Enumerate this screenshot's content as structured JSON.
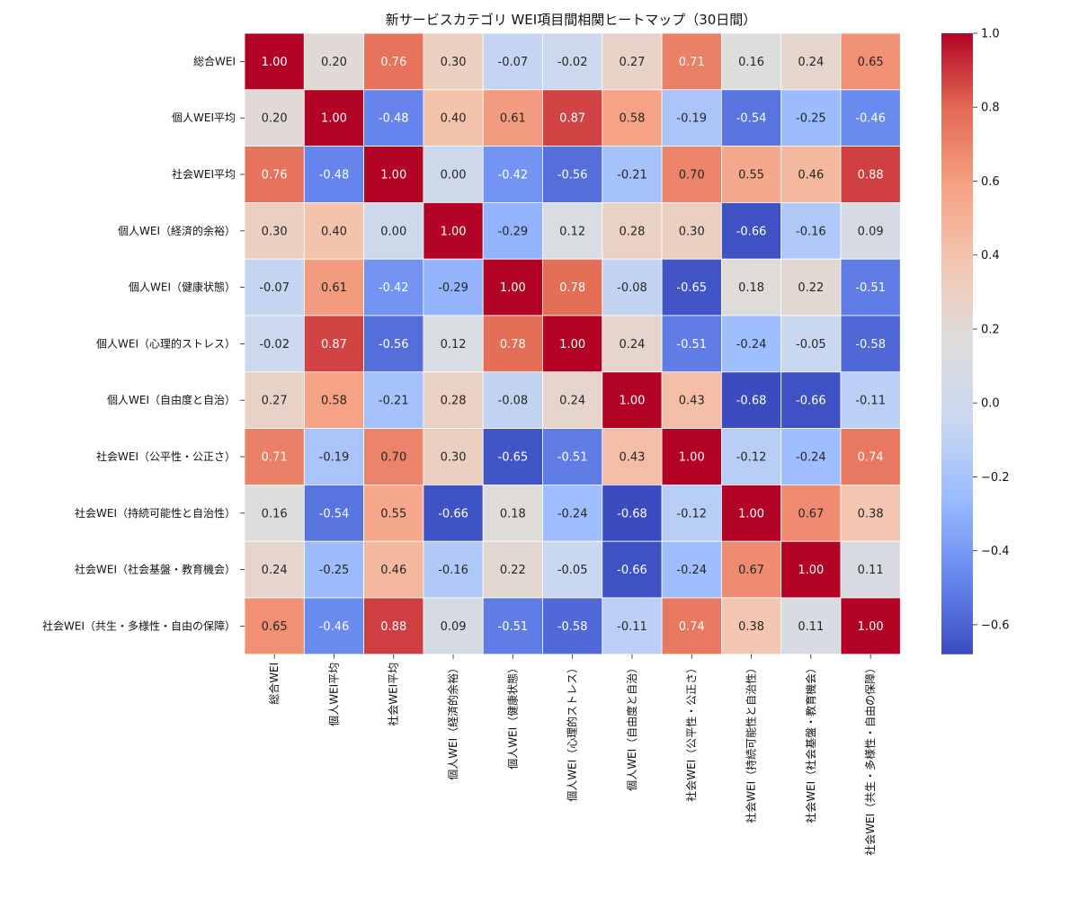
{
  "chart_data": {
    "type": "heatmap",
    "title": "新サービスカテゴリ WEI項目間相関ヒートマップ（30日間）",
    "row_labels": [
      "総合WEI",
      "個人WEI平均",
      "社会WEI平均",
      "個人WEI（経済的余裕）",
      "個人WEI（健康状態）",
      "個人WEI（心理的ストレス）",
      "個人WEI（自由度と自治）",
      "社会WEI（公平性・公正さ）",
      "社会WEI（持続可能性と自治性）",
      "社会WEI（社会基盤・教育機会）",
      "社会WEI（共生・多様性・自由の保障）"
    ],
    "column_labels": [
      "総合WEI",
      "個人WEI平均",
      "社会WEI平均",
      "個人WEI（経済的余裕）",
      "個人WEI（健康状態）",
      "個人WEI（心理的ストレス）",
      "個人WEI（自由度と自治）",
      "社会WEI（公平性・公正さ）",
      "社会WEI（持続可能性と自治性）",
      "社会WEI（社会基盤・教育機会）",
      "社会WEI（共生・多様性・自由の保障）"
    ],
    "values": [
      [
        1.0,
        0.2,
        0.76,
        0.3,
        -0.07,
        -0.02,
        0.27,
        0.71,
        0.16,
        0.24,
        0.65
      ],
      [
        0.2,
        1.0,
        -0.48,
        0.4,
        0.61,
        0.87,
        0.58,
        -0.19,
        -0.54,
        -0.25,
        -0.46
      ],
      [
        0.76,
        -0.48,
        1.0,
        0.0,
        -0.42,
        -0.56,
        -0.21,
        0.7,
        0.55,
        0.46,
        0.88
      ],
      [
        0.3,
        0.4,
        0.0,
        1.0,
        -0.29,
        0.12,
        0.28,
        0.3,
        -0.66,
        -0.16,
        0.09
      ],
      [
        -0.07,
        0.61,
        -0.42,
        -0.29,
        1.0,
        0.78,
        -0.08,
        -0.65,
        0.18,
        0.22,
        -0.51
      ],
      [
        -0.02,
        0.87,
        -0.56,
        0.12,
        0.78,
        1.0,
        0.24,
        -0.51,
        -0.24,
        -0.05,
        -0.58
      ],
      [
        0.27,
        0.58,
        -0.21,
        0.28,
        -0.08,
        0.24,
        1.0,
        0.43,
        -0.68,
        -0.66,
        -0.11
      ],
      [
        0.71,
        -0.19,
        0.7,
        0.3,
        -0.65,
        -0.51,
        0.43,
        1.0,
        -0.12,
        -0.24,
        0.74
      ],
      [
        0.16,
        -0.54,
        0.55,
        -0.66,
        0.18,
        -0.24,
        -0.68,
        -0.12,
        1.0,
        0.67,
        0.38
      ],
      [
        0.24,
        -0.25,
        0.46,
        -0.16,
        0.22,
        -0.05,
        -0.66,
        -0.24,
        0.67,
        1.0,
        0.11
      ],
      [
        0.65,
        -0.46,
        0.88,
        0.09,
        -0.51,
        -0.58,
        -0.11,
        0.74,
        0.38,
        0.11,
        1.0
      ]
    ],
    "value_format": "0.00",
    "color_scale": {
      "name": "coolwarm",
      "vmin": -0.68,
      "vmax": 1.0,
      "stops": [
        "#3b4cc0",
        "#6788ee",
        "#9abbff",
        "#c9d7f0",
        "#dddddd",
        "#f2c8b3",
        "#f6a385",
        "#e36c55",
        "#b40426"
      ]
    },
    "colorbar_ticks": [
      {
        "value": 1.0,
        "label": "1.0"
      },
      {
        "value": 0.8,
        "label": "0.8"
      },
      {
        "value": 0.6,
        "label": "0.6"
      },
      {
        "value": 0.4,
        "label": "0.4"
      },
      {
        "value": 0.2,
        "label": "0.2"
      },
      {
        "value": 0.0,
        "label": "0.0"
      },
      {
        "value": -0.2,
        "label": "−0.2"
      },
      {
        "value": -0.4,
        "label": "−0.4"
      },
      {
        "value": -0.6,
        "label": "−0.6"
      }
    ],
    "grid_lines": true,
    "grid_line_color": "#ffffff",
    "text_colors": {
      "dark": "#262626",
      "light": "#ffffff"
    }
  }
}
